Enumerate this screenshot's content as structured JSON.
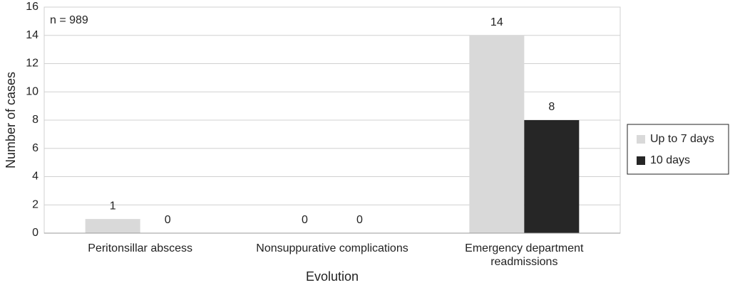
{
  "chart_data": {
    "type": "bar",
    "annotation": "n = 989",
    "x_label": "Evolution",
    "y_label": "Number of cases",
    "categories": [
      "Peritonsillar abscess",
      "Nonsuppurative complications",
      "Emergency department readmissions"
    ],
    "series": [
      {
        "name": "Up to 7 days",
        "color": "#d9d9d9",
        "values": [
          1,
          0,
          14
        ]
      },
      {
        "name": "10 days",
        "color": "#262626",
        "values": [
          0,
          0,
          8
        ]
      }
    ],
    "ylim": [
      0,
      16
    ],
    "yticks": [
      0,
      2,
      4,
      6,
      8,
      10,
      12,
      14,
      16
    ],
    "grid": true,
    "legend": "right"
  }
}
